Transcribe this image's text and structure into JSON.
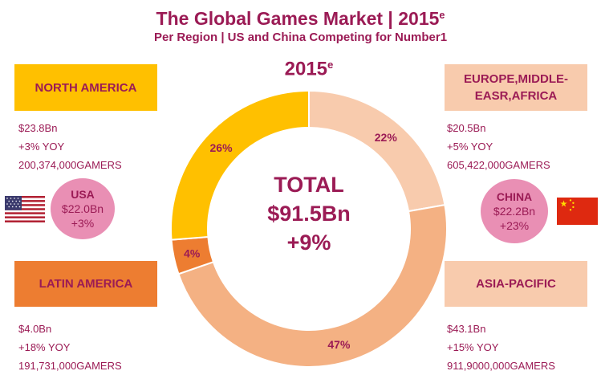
{
  "header": {
    "title": "The Global Games Market | 2015",
    "title_sup": "e",
    "subtitle": "Per Region | US and China Competing for Number1"
  },
  "year": {
    "label": "2015",
    "sup": "e"
  },
  "total": {
    "label": "TOTAL",
    "value": "$91.5Bn",
    "growth": "+9%"
  },
  "regions": {
    "north_america": {
      "name": "NORTH AMERICA",
      "revenue": "$23.8Bn",
      "growth": "+3% YOY",
      "gamers": "200,374,000GAMERS",
      "color": "#ffc000"
    },
    "emea": {
      "name_line1": "EUROPE,MIDDLE-",
      "name_line2": "EASR,AFRICA",
      "revenue": "$20.5Bn",
      "growth": "+5% YOY",
      "gamers": "605,422,000GAMERS",
      "color": "#f8cbad"
    },
    "latin_america": {
      "name": "LATIN AMERICA",
      "revenue": "$4.0Bn",
      "growth": "+18% YOY",
      "gamers": "191,731,000GAMERS",
      "color": "#ed7d31"
    },
    "asia_pacific": {
      "name": "ASIA-PACIFIC",
      "revenue": "$43.1Bn",
      "growth": "+15% YOY",
      "gamers": "911,9000,000GAMERS",
      "color": "#f4b183"
    }
  },
  "countries": {
    "usa": {
      "name": "USA",
      "value": "$22.0Bn",
      "growth": "+3%",
      "flag_icon": "us-flag-icon"
    },
    "china": {
      "name": "CHINA",
      "value": "$22.2Bn",
      "growth": "+23%",
      "flag_icon": "china-flag-icon"
    }
  },
  "colors": {
    "text": "#9b1b55",
    "bubble": "#e98fb4"
  },
  "chart_data": {
    "type": "pie",
    "variant": "donut",
    "slices": [
      {
        "label": "EUROPE,MIDDLE-EASR,AFRICA",
        "value": 22,
        "display": "22%",
        "color": "#f8cbad"
      },
      {
        "label": "ASIA-PACIFIC",
        "value": 47,
        "display": "47%",
        "color": "#f4b183"
      },
      {
        "label": "LATIN AMERICA",
        "value": 4,
        "display": "4%",
        "color": "#ed7d31"
      },
      {
        "label": "NORTH AMERICA",
        "value": 26,
        "display": "26%",
        "color": "#ffc000"
      }
    ],
    "start_angle": "12 o'clock",
    "direction": "clockwise"
  }
}
